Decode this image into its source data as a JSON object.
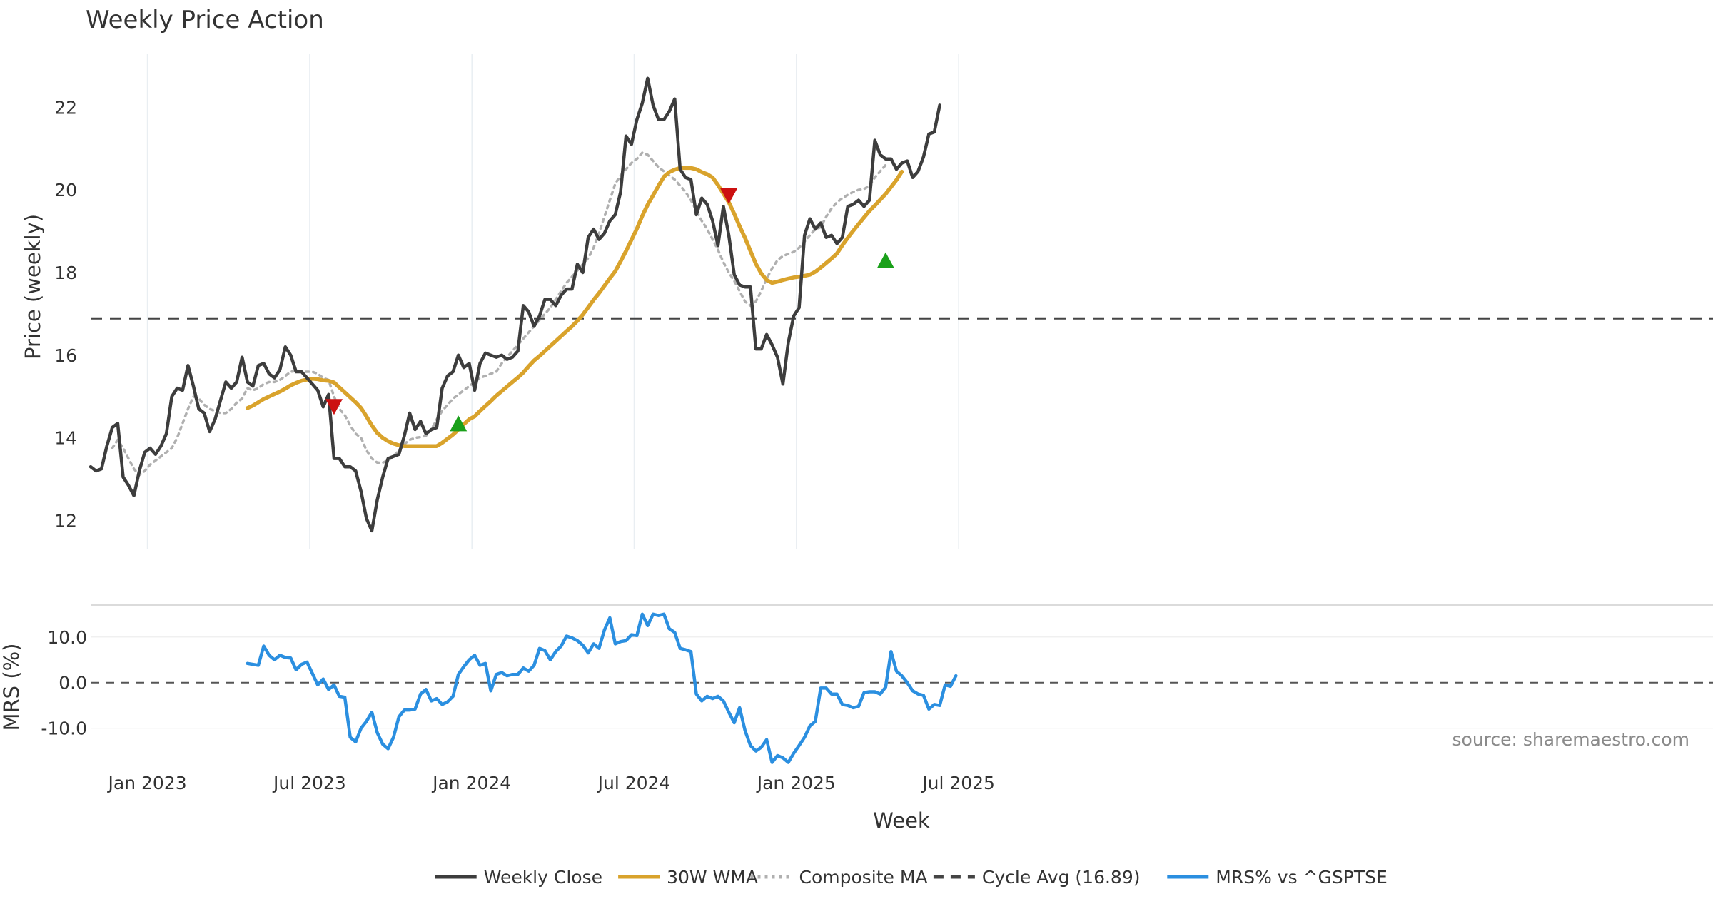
{
  "chart_data": [
    {
      "type": "line",
      "title": "Weekly Price Action",
      "ylabel": "Price (weekly)",
      "ylim": [
        11.3,
        23.3
      ],
      "yticks": [
        12,
        14,
        16,
        18,
        20,
        22
      ],
      "grid": "vertical",
      "series": [
        {
          "name": "Weekly Close",
          "color": "#3d3d3d",
          "style": "solid",
          "values": [
            13.3,
            13.2,
            13.25,
            13.8,
            14.25,
            14.35,
            13.05,
            12.85,
            12.6,
            13.2,
            13.65,
            13.75,
            13.6,
            13.8,
            14.1,
            15.0,
            15.2,
            15.15,
            15.75,
            15.25,
            14.7,
            14.6,
            14.15,
            14.45,
            14.9,
            15.35,
            15.2,
            15.35,
            15.95,
            15.35,
            15.25,
            15.75,
            15.8,
            15.55,
            15.45,
            15.65,
            16.2,
            16.0,
            15.6,
            15.6,
            15.45,
            15.3,
            15.15,
            14.75,
            15.05,
            13.5,
            13.5,
            13.3,
            13.3,
            13.2,
            12.7,
            12.05,
            11.75,
            12.5,
            13.05,
            13.5,
            13.55,
            13.6,
            14.05,
            14.6,
            14.2,
            14.4,
            14.1,
            14.2,
            14.25,
            15.2,
            15.5,
            15.6,
            16.0,
            15.7,
            15.8,
            15.15,
            15.8,
            16.05,
            16.0,
            15.95,
            16.0,
            15.9,
            15.95,
            16.1,
            17.2,
            17.05,
            16.7,
            16.95,
            17.35,
            17.35,
            17.2,
            17.45,
            17.6,
            17.6,
            18.2,
            18.0,
            18.85,
            19.05,
            18.8,
            18.95,
            19.25,
            19.4,
            19.95,
            21.3,
            21.1,
            21.7,
            22.1,
            22.7,
            22.05,
            21.7,
            21.7,
            21.9,
            22.2,
            20.5,
            20.3,
            20.25,
            19.4,
            19.8,
            19.65,
            19.25,
            18.65,
            19.6,
            18.9,
            17.95,
            17.7,
            17.65,
            17.65,
            16.15,
            16.15,
            16.5,
            16.25,
            15.95,
            15.3,
            16.3,
            16.95,
            17.15,
            18.9,
            19.3,
            19.05,
            19.2,
            18.85,
            18.9,
            18.7,
            18.85,
            19.6,
            19.65,
            19.75,
            19.6,
            19.75,
            21.2,
            20.85,
            20.75,
            20.75,
            20.5,
            20.65,
            20.7,
            20.3,
            20.45,
            20.8,
            21.35,
            21.4,
            22.05
          ]
        },
        {
          "name": "30W WMA",
          "color": "#d9a32c",
          "style": "solid",
          "start_index": 29,
          "values": [
            14.72,
            14.78,
            14.86,
            14.94,
            15.0,
            15.06,
            15.12,
            15.19,
            15.27,
            15.33,
            15.38,
            15.41,
            15.43,
            15.42,
            15.39,
            15.38,
            15.34,
            15.22,
            15.1,
            14.98,
            14.86,
            14.72,
            14.52,
            14.3,
            14.12,
            14.0,
            13.92,
            13.86,
            13.82,
            13.8,
            13.8,
            13.8,
            13.8,
            13.8,
            13.8,
            13.8,
            13.88,
            13.98,
            14.08,
            14.2,
            14.33,
            14.45,
            14.52,
            14.65,
            14.77,
            14.89,
            15.02,
            15.13,
            15.24,
            15.35,
            15.46,
            15.58,
            15.73,
            15.87,
            15.98,
            16.1,
            16.22,
            16.34,
            16.46,
            16.58,
            16.7,
            16.83,
            16.98,
            17.16,
            17.34,
            17.5,
            17.68,
            17.86,
            18.03,
            18.27,
            18.52,
            18.79,
            19.06,
            19.37,
            19.64,
            19.87,
            20.1,
            20.32,
            20.43,
            20.49,
            20.53,
            20.53,
            20.53,
            20.5,
            20.43,
            20.38,
            20.3,
            20.12,
            19.91,
            19.7,
            19.42,
            19.12,
            18.84,
            18.52,
            18.21,
            17.98,
            17.82,
            17.75,
            17.78,
            17.82,
            17.85,
            17.88,
            17.9,
            17.92,
            17.95,
            18.02,
            18.12,
            18.23,
            18.34,
            18.46,
            18.66,
            18.84,
            19.01,
            19.17,
            19.33,
            19.49,
            19.62,
            19.76,
            19.9,
            20.07,
            20.24,
            20.44
          ]
        },
        {
          "name": "Composite MA",
          "color": "#b0b0b0",
          "style": "dotted",
          "start_index": 4,
          "values": [
            13.75,
            13.95,
            13.75,
            13.5,
            13.25,
            13.1,
            13.2,
            13.35,
            13.45,
            13.55,
            13.65,
            13.75,
            14.0,
            14.35,
            14.7,
            15.0,
            14.95,
            14.8,
            14.7,
            14.65,
            14.6,
            14.6,
            14.7,
            14.85,
            14.95,
            15.2,
            15.15,
            15.2,
            15.3,
            15.35,
            15.35,
            15.4,
            15.5,
            15.6,
            15.62,
            15.6,
            15.6,
            15.6,
            15.55,
            15.45,
            15.4,
            15.0,
            14.7,
            14.55,
            14.3,
            14.1,
            14.0,
            13.7,
            13.5,
            13.4,
            13.4,
            13.45,
            13.55,
            13.7,
            13.85,
            13.95,
            14.0,
            14.02,
            14.05,
            14.2,
            14.45,
            14.65,
            14.8,
            14.95,
            15.05,
            15.15,
            15.25,
            15.35,
            15.45,
            15.5,
            15.55,
            15.6,
            15.8,
            15.95,
            16.1,
            16.25,
            16.4,
            16.55,
            16.7,
            16.85,
            17.0,
            17.15,
            17.35,
            17.55,
            17.75,
            17.9,
            18.05,
            18.2,
            18.35,
            18.6,
            18.95,
            19.35,
            19.75,
            20.15,
            20.35,
            20.5,
            20.65,
            20.75,
            20.9,
            20.85,
            20.7,
            20.55,
            20.45,
            20.35,
            20.25,
            20.1,
            19.95,
            19.75,
            19.5,
            19.25,
            19.05,
            18.8,
            18.55,
            18.25,
            18.0,
            17.8,
            17.55,
            17.3,
            17.2,
            17.3,
            17.55,
            17.85,
            18.1,
            18.3,
            18.4,
            18.45,
            18.5,
            18.6,
            18.75,
            18.9,
            19.05,
            19.1,
            19.35,
            19.55,
            19.7,
            19.8,
            19.88,
            19.95,
            20.0,
            20.02,
            20.1,
            20.3,
            20.45,
            20.6
          ]
        }
      ],
      "reference_line": {
        "name": "Cycle Avg (16.89)",
        "value": 16.89,
        "color": "#444444",
        "style": "dashed"
      },
      "markers": [
        {
          "type": "sell",
          "shape": "triangle-down",
          "color": "#cc1111",
          "x_index": 45,
          "y": 14.75
        },
        {
          "type": "buy",
          "shape": "triangle-up",
          "color": "#1aa01a",
          "x_index": 68,
          "y": 14.35
        },
        {
          "type": "sell",
          "shape": "triangle-down",
          "color": "#cc1111",
          "x_index": 118,
          "y": 19.85
        },
        {
          "type": "buy",
          "shape": "triangle-up",
          "color": "#1aa01a",
          "x_index": 147,
          "y": 18.3
        }
      ]
    },
    {
      "type": "line",
      "ylabel": "MRS (%)",
      "ylim": [
        -18.5,
        17.0
      ],
      "yticks": [
        10.0,
        0.0,
        -10.0
      ],
      "ytick_labels": [
        "10.0",
        "0.0",
        "-10.0"
      ],
      "reference_line": {
        "value": 0,
        "color": "#555555",
        "style": "dashed"
      },
      "series": [
        {
          "name": "MRS% vs ^GSPTSE",
          "color": "#2b8fe0",
          "style": "solid",
          "start_index": 29,
          "values": [
            4.2,
            4.0,
            3.8,
            8.0,
            6.0,
            5.0,
            6.0,
            5.5,
            5.4,
            2.8,
            4.0,
            4.5,
            2.0,
            -0.5,
            0.8,
            -1.5,
            -0.5,
            -3.0,
            -3.2,
            -12.0,
            -13.0,
            -10.0,
            -8.5,
            -6.5,
            -11.0,
            -13.5,
            -14.5,
            -12.0,
            -7.5,
            -6.0,
            -6.0,
            -5.8,
            -2.5,
            -1.5,
            -4.0,
            -3.5,
            -4.8,
            -4.2,
            -3.0,
            1.8,
            3.5,
            5.0,
            6.0,
            3.8,
            4.2,
            -1.8,
            1.8,
            2.2,
            1.5,
            1.8,
            1.8,
            3.2,
            2.5,
            3.8,
            7.5,
            7.0,
            5.0,
            6.8,
            8.0,
            10.2,
            9.8,
            9.2,
            8.2,
            6.5,
            8.5,
            7.5,
            11.5,
            14.2,
            8.5,
            9.0,
            9.2,
            10.5,
            10.3,
            15.0,
            12.5,
            15.0,
            14.7,
            15.0,
            11.8,
            11.0,
            7.5,
            7.2,
            6.8,
            -2.5,
            -4.0,
            -3.0,
            -3.5,
            -3.0,
            -4.0,
            -6.5,
            -8.8,
            -5.5,
            -10.5,
            -13.8,
            -15.0,
            -14.2,
            -12.5,
            -17.5,
            -16.0,
            -16.5,
            -17.5,
            -15.5,
            -13.8,
            -12.0,
            -9.5,
            -8.5,
            -1.2,
            -1.2,
            -2.5,
            -2.5,
            -4.8,
            -5.0,
            -5.5,
            -5.2,
            -2.2,
            -2.0,
            -2.0,
            -2.5,
            -1.0,
            6.8,
            2.5,
            1.5,
            0.0,
            -1.8,
            -2.5,
            -2.8,
            -5.8,
            -4.8,
            -5.0,
            -0.5,
            -0.8,
            1.5
          ]
        }
      ]
    }
  ],
  "x_axis": {
    "label": "Week",
    "tick_labels": [
      "Jan 2023",
      "Jul 2023",
      "Jan 2024",
      "Jul 2024",
      "Jan 2025",
      "Jul 2025"
    ],
    "tick_indices": [
      10.5,
      40.5,
      70.5,
      100.5,
      130.5,
      160.5
    ],
    "n_points": 180
  },
  "legend": {
    "placement": "bottom-center",
    "entries": [
      {
        "label": "Weekly Close",
        "color": "#3d3d3d",
        "style": "solid"
      },
      {
        "label": "30W WMA",
        "color": "#d9a32c",
        "style": "solid"
      },
      {
        "label": "Composite MA",
        "color": "#b0b0b0",
        "style": "dotted"
      },
      {
        "label": "Cycle Avg (16.89)",
        "color": "#444444",
        "style": "dashed"
      },
      {
        "label": "MRS% vs ^GSPTSE",
        "color": "#2b8fe0",
        "style": "solid"
      }
    ]
  },
  "source": "source: sharemaestro.com"
}
